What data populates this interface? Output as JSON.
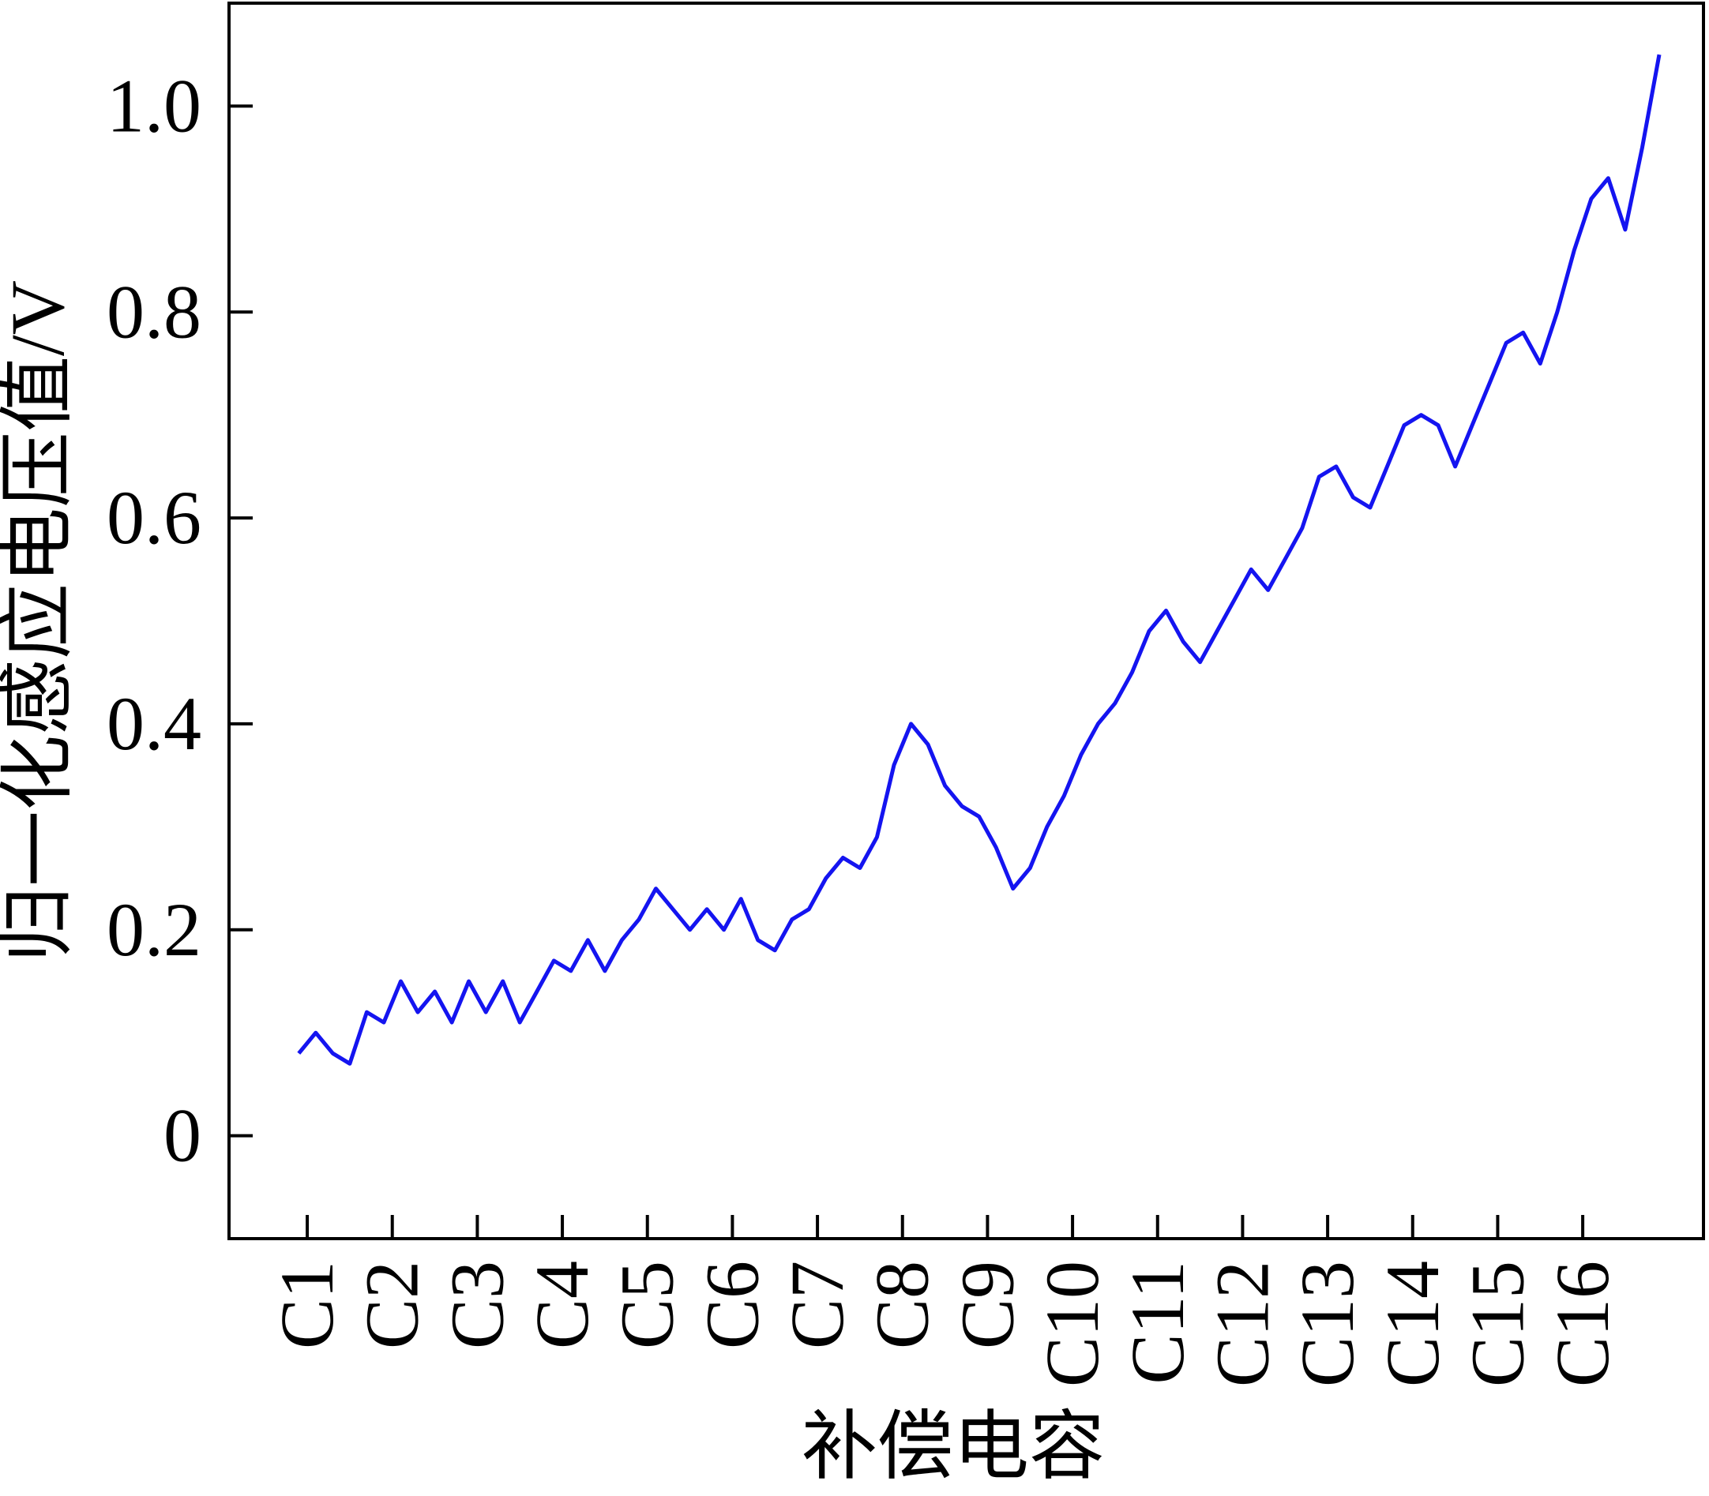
{
  "chart_data": {
    "type": "line",
    "x_label": "补偿电容",
    "y_label": "归一化感应电压值/V",
    "xlim": [
      0.08,
      17.42
    ],
    "ylim": [
      -0.1,
      1.1
    ],
    "xticks": [
      {
        "value": 1,
        "label": "C1"
      },
      {
        "value": 2,
        "label": "C2"
      },
      {
        "value": 3,
        "label": "C3"
      },
      {
        "value": 4,
        "label": "C4"
      },
      {
        "value": 5,
        "label": "C5"
      },
      {
        "value": 6,
        "label": "C6"
      },
      {
        "value": 7,
        "label": "C7"
      },
      {
        "value": 8,
        "label": "C8"
      },
      {
        "value": 9,
        "label": "C9"
      },
      {
        "value": 10,
        "label": "C10"
      },
      {
        "value": 11,
        "label": "C11"
      },
      {
        "value": 12,
        "label": "C12"
      },
      {
        "value": 13,
        "label": "C13"
      },
      {
        "value": 14,
        "label": "C14"
      },
      {
        "value": 15,
        "label": "C15"
      },
      {
        "value": 16,
        "label": "C16"
      }
    ],
    "yticks": [
      0,
      {
        "value": 0.2,
        "label": "0.2"
      },
      {
        "value": 0.4,
        "label": "0.4"
      },
      {
        "value": 0.6,
        "label": "0.6"
      },
      {
        "value": 0.8,
        "label": "0.8"
      },
      {
        "value": 1.0,
        "label": "1.0"
      }
    ],
    "x": [
      0.9,
      1.1,
      1.3,
      1.5,
      1.7,
      1.9,
      2.1,
      2.3,
      2.5,
      2.7,
      2.9,
      3.1,
      3.3,
      3.5,
      3.7,
      3.9,
      4.1,
      4.3,
      4.5,
      4.7,
      4.9,
      5.1,
      5.3,
      5.5,
      5.7,
      5.9,
      6.1,
      6.3,
      6.5,
      6.7,
      6.9,
      7.1,
      7.3,
      7.5,
      7.7,
      7.9,
      8.1,
      8.3,
      8.5,
      8.7,
      8.9,
      9.1,
      9.3,
      9.5,
      9.7,
      9.9,
      10.1,
      10.3,
      10.5,
      10.7,
      10.9,
      11.1,
      11.3,
      11.5,
      11.7,
      11.9,
      12.1,
      12.3,
      12.5,
      12.7,
      12.9,
      13.1,
      13.3,
      13.5,
      13.7,
      13.9,
      14.1,
      14.3,
      14.5,
      14.7,
      14.9,
      15.1,
      15.3,
      15.5,
      15.7,
      15.9,
      16.1,
      16.3,
      16.5,
      16.7,
      16.9
    ],
    "series": [
      {
        "color": "#1414f0",
        "values": [
          0.08,
          0.1,
          0.08,
          0.07,
          0.12,
          0.11,
          0.15,
          0.12,
          0.14,
          0.11,
          0.15,
          0.12,
          0.15,
          0.11,
          0.14,
          0.17,
          0.16,
          0.19,
          0.16,
          0.19,
          0.21,
          0.24,
          0.22,
          0.2,
          0.22,
          0.2,
          0.23,
          0.19,
          0.18,
          0.21,
          0.22,
          0.25,
          0.27,
          0.26,
          0.29,
          0.36,
          0.4,
          0.38,
          0.34,
          0.32,
          0.31,
          0.28,
          0.24,
          0.26,
          0.3,
          0.33,
          0.37,
          0.4,
          0.42,
          0.45,
          0.49,
          0.51,
          0.48,
          0.46,
          0.49,
          0.52,
          0.55,
          0.53,
          0.56,
          0.59,
          0.64,
          0.65,
          0.62,
          0.61,
          0.65,
          0.69,
          0.7,
          0.69,
          0.65,
          0.69,
          0.73,
          0.77,
          0.78,
          0.75,
          0.8,
          0.86,
          0.91,
          0.93,
          0.88,
          0.96,
          1.05
        ]
      }
    ]
  }
}
